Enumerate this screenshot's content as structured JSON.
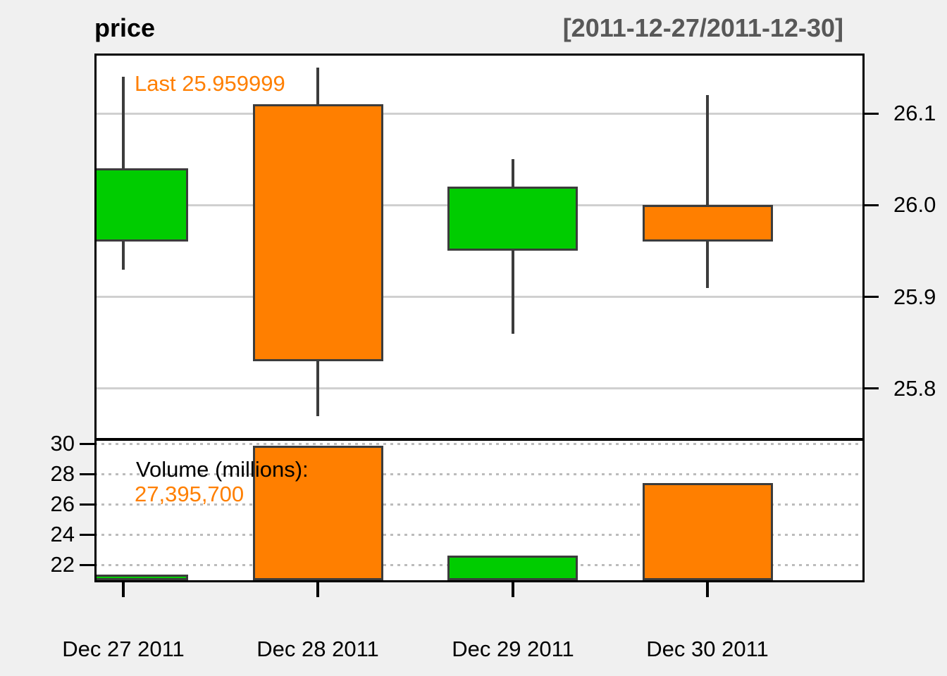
{
  "header": {
    "title": "price",
    "range": "[2011-12-27/2011-12-30]"
  },
  "price_panel": {
    "annotation": "Last 25.959999",
    "y_tick_labels": [
      "26.1",
      "26.0",
      "25.9",
      "25.8"
    ]
  },
  "volume_panel": {
    "annotation_line1": "Volume (millions):",
    "annotation_line2": "27,395,700",
    "y_tick_labels": [
      "30",
      "28",
      "26",
      "24",
      "22"
    ]
  },
  "x_axis": {
    "labels": [
      "Dec 27 2011",
      "Dec 28 2011",
      "Dec 29 2011",
      "Dec 30 2011"
    ]
  },
  "colors": {
    "up": "#00cc00",
    "down": "#ff7f00",
    "annotation_orange": "#ff7f00",
    "range_text": "#585858",
    "wick_border": "#3c3c3c",
    "grid_solid": "#d0d0d0",
    "grid_dotted": "#bcbcbc",
    "canvas_bg": "#f0f0f0",
    "panel_bg": "#ffffff",
    "axis": "#000000"
  },
  "chart_data": [
    {
      "type": "candlestick",
      "title": "price",
      "subtitle": "[2011-12-27/2011-12-30]",
      "categories": [
        "Dec 27 2011",
        "Dec 28 2011",
        "Dec 29 2011",
        "Dec 30 2011"
      ],
      "open": [
        25.96,
        26.11,
        25.95,
        26.0
      ],
      "high": [
        26.14,
        26.15,
        26.05,
        26.12
      ],
      "low": [
        25.93,
        25.77,
        25.86,
        25.91
      ],
      "close": [
        26.04,
        25.83,
        26.02,
        25.96
      ],
      "direction": [
        "up",
        "down",
        "up",
        "down"
      ],
      "last": 25.959999,
      "annotation": "Last 25.959999",
      "ylim": [
        25.75,
        26.16
      ],
      "yticks": [
        26.1,
        26.0,
        25.9,
        25.8
      ],
      "yaxis_side": "right",
      "grid": "horizontal-solid",
      "legend_position": "none"
    },
    {
      "type": "bar",
      "title": "Volume (millions): 27,395,700",
      "categories": [
        "Dec 27 2011",
        "Dec 28 2011",
        "Dec 29 2011",
        "Dec 30 2011"
      ],
      "values": [
        21.35,
        29.85,
        22.6,
        27.4
      ],
      "bar_directions": [
        "up",
        "down",
        "up",
        "down"
      ],
      "volume_exact_label": "27,395,700",
      "ylim": [
        20.95,
        30.2
      ],
      "yticks": [
        30,
        28,
        26,
        24,
        22
      ],
      "yaxis_side": "left",
      "grid": "horizontal-dotted",
      "legend_position": "none"
    }
  ]
}
